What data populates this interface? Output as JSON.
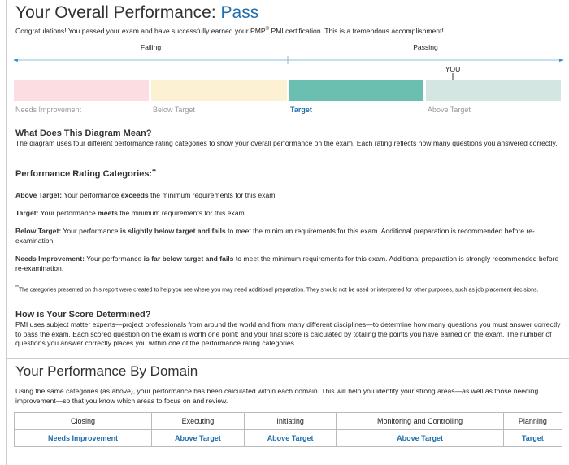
{
  "overall": {
    "title": "Your Overall Performance:",
    "result": "Pass",
    "congrats_pre": "Congratulations! You passed your exam and have successfully earned your PMP",
    "congrats_sup": "®",
    "congrats_post": " PMI certification. This is a tremendous accomplishment!",
    "failing_label": "Failing",
    "passing_label": "Passing",
    "you_marker": "YOU",
    "you_position_percent": 80,
    "categories": [
      {
        "label": "Needs Improvement",
        "color": "#fbdde2",
        "active": false
      },
      {
        "label": "Below Target",
        "color": "#fdf1d4",
        "active": false
      },
      {
        "label": "Target",
        "color": "#6bbfb0",
        "active": true
      },
      {
        "label": "Above Target",
        "color": "#d3e6e2",
        "active": false
      }
    ],
    "accent_color": "#1f6fad"
  },
  "diagram": {
    "heading": "What Does This Diagram Mean?",
    "body": "The diagram uses four different performance rating categories to show your overall performance on the exam. Each rating reflects how many questions you answered correctly."
  },
  "ratings": {
    "heading": "Performance Rating Categories:",
    "heading_sup": "**",
    "items": [
      {
        "term": "Above Target:",
        "pre": " Your performance ",
        "bold": "exceeds",
        "post": " the minimum requirements for this exam."
      },
      {
        "term": "Target:",
        "pre": " Your performance ",
        "bold": "meets",
        "post": " the minimum requirements for this exam."
      },
      {
        "term": "Below Target:",
        "pre": " Your performance ",
        "bold": "is slightly below target and fails",
        "post": " to meet the minimum requirements for this exam. Additional preparation is recommended before re-examination."
      },
      {
        "term": "Needs Improvement:",
        "pre": " Your performance ",
        "bold": "is far below target and fails",
        "post": " to meet the minimum requirements for this exam. Additional preparation is strongly recommended before re-examination."
      }
    ],
    "footnote_mark": "**",
    "footnote": "The categories presented on this report were created to help you see where you may need additional preparation. They should not be used or interpreted for other purposes, such as job placement decisions."
  },
  "score": {
    "heading": "How is Your Score Determined?",
    "body": "PMI uses subject matter experts—project professionals from around the world and from many different disciplines—to determine how many questions you must answer correctly to pass the exam. Each scored question on the exam is worth one point; and your final score is calculated by totaling the points you have earned on the exam. The number of questions you answer correctly places you within one of the performance rating categories."
  },
  "domain": {
    "title": "Your Performance By Domain",
    "intro": "Using the same categories (as above), your performance has been calculated within each domain. This will help you identify your strong areas—as well as those needing improvement—so that you know which areas to focus on and review.",
    "columns": [
      "Closing",
      "Executing",
      "Initiating",
      "Monitoring and Controlling",
      "Planning"
    ],
    "values": [
      "Needs Improvement",
      "Above Target",
      "Above Target",
      "Above Target",
      "Target"
    ]
  }
}
